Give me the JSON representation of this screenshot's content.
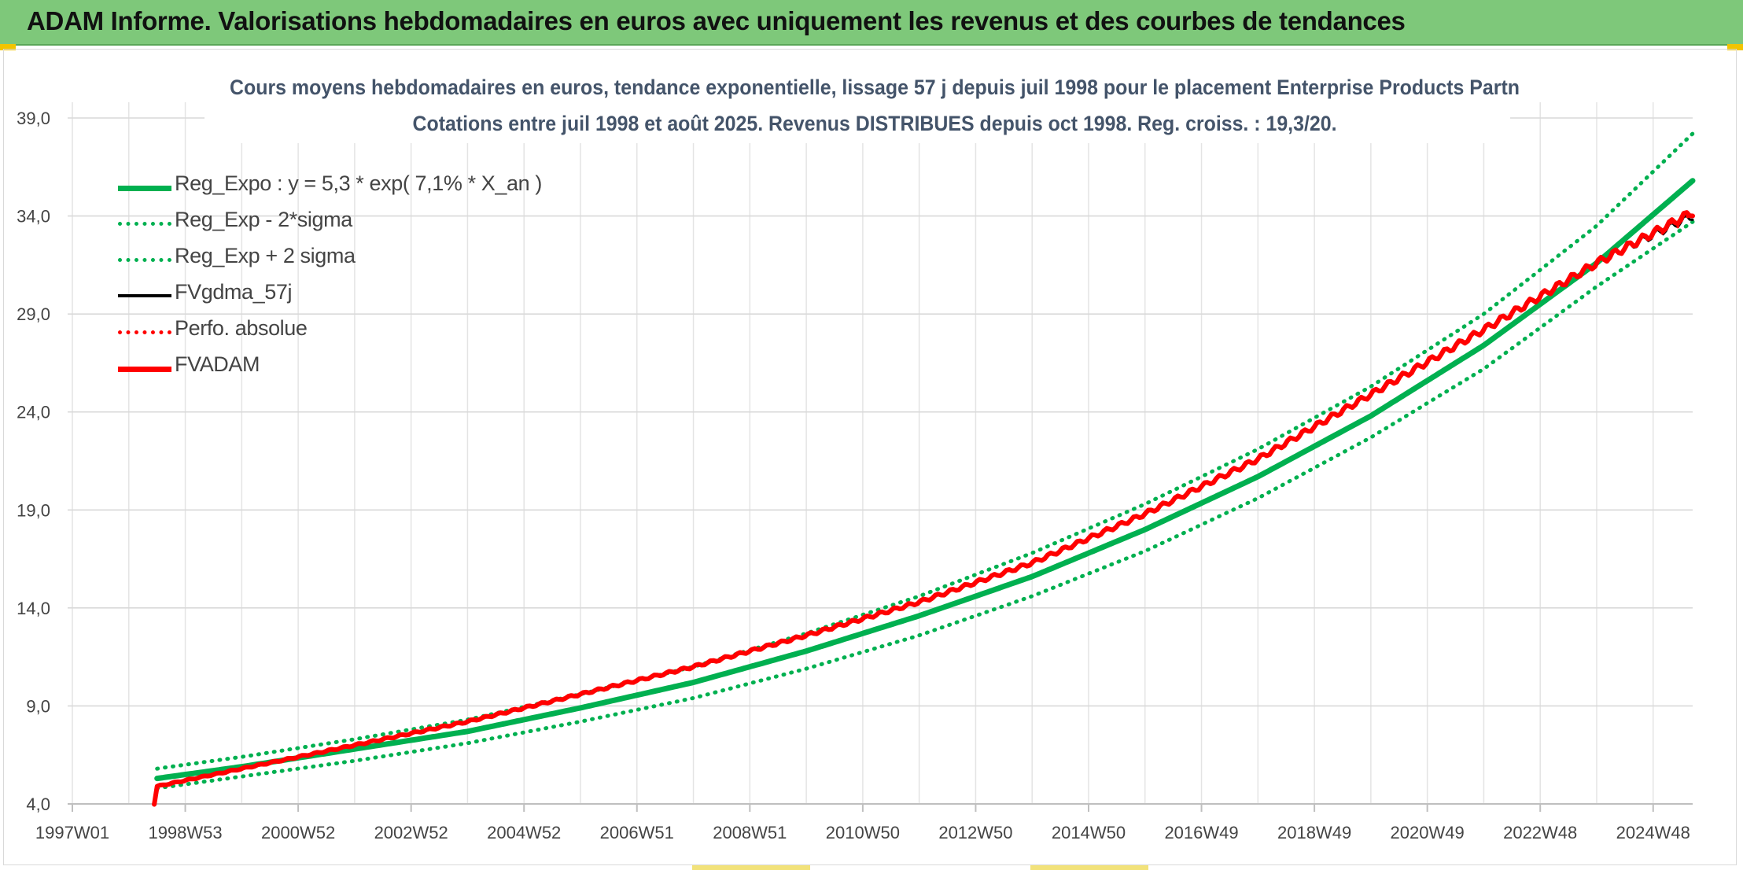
{
  "header": {
    "title": "ADAM Informe. Valorisations hebdomadaires en euros avec uniquement les revenus et des courbes de tendances"
  },
  "colors": {
    "banner": "#7ec87a",
    "reg_expo": "#00b050",
    "fvadam": "#ff0000",
    "fvgdma": "#000000",
    "grid": "#d9d9d9"
  },
  "chart_data": {
    "type": "line",
    "title": "Cours moyens hebdomadaires en euros, tendance exponentielle, lissage 57 j depuis juil 1998 pour le placement Enterprise Products Partn",
    "subtitle": "Cotations entre juil 1998 et août 2025. Revenus DISTRIBUES depuis oct 1998. Reg. croiss. : 19,3/20.",
    "xlabel": "",
    "ylabel": "",
    "ylim": [
      4.0,
      39.0
    ],
    "yticks": [
      "4,0",
      "9,0",
      "14,0",
      "19,0",
      "24,0",
      "29,0",
      "34,0",
      "39,0"
    ],
    "xticks": [
      "1997W01",
      "1998W53",
      "2000W52",
      "2002W52",
      "2004W52",
      "2006W51",
      "2008W51",
      "2010W50",
      "2012W50",
      "2014W50",
      "2016W49",
      "2018W49",
      "2020W49",
      "2022W48",
      "2024W48"
    ],
    "xlim": [
      1997.0,
      2025.7
    ],
    "grid": true,
    "legend_position": "top-left",
    "series": [
      {
        "name": "Reg_Expo : y = 5,3 * exp( 7,1% *  X_an )",
        "style": "solid-thick",
        "color": "#00b050",
        "x": [
          1998.5,
          2000,
          2002,
          2004,
          2006,
          2008,
          2010,
          2012,
          2014,
          2016,
          2018,
          2020,
          2022,
          2024,
          2025.7
        ],
        "values": [
          5.3,
          5.9,
          6.8,
          7.7,
          8.9,
          10.2,
          11.8,
          13.6,
          15.6,
          18.0,
          20.7,
          23.8,
          27.4,
          31.6,
          35.8
        ]
      },
      {
        "name": "Reg_Exp - 2*sigma",
        "style": "dotted",
        "color": "#00b050",
        "x": [
          1998.5,
          2000,
          2002,
          2004,
          2006,
          2008,
          2010,
          2012,
          2014,
          2016,
          2018,
          2020,
          2022,
          2024,
          2025.7
        ],
        "values": [
          4.8,
          5.4,
          6.2,
          7.1,
          8.2,
          9.4,
          10.9,
          12.6,
          14.6,
          16.9,
          19.6,
          22.7,
          26.2,
          30.4,
          33.7
        ]
      },
      {
        "name": "Reg_Exp + 2 sigma",
        "style": "dotted",
        "color": "#00b050",
        "x": [
          1998.5,
          2000,
          2002,
          2004,
          2006,
          2008,
          2010,
          2012,
          2014,
          2016,
          2018,
          2020,
          2022,
          2024,
          2025.7
        ],
        "values": [
          5.8,
          6.4,
          7.3,
          8.3,
          9.6,
          11.0,
          12.7,
          14.6,
          16.8,
          19.3,
          22.1,
          25.3,
          29.0,
          33.5,
          38.2
        ]
      },
      {
        "name": "FVgdma_57j",
        "style": "solid",
        "color": "#000000",
        "x": [
          1998.5,
          2000,
          2002,
          2004,
          2006,
          2008,
          2010,
          2012,
          2014,
          2016,
          2018,
          2020,
          2022,
          2024,
          2025.7
        ],
        "values": [
          4.9,
          5.8,
          7.0,
          8.2,
          9.6,
          11.0,
          12.6,
          14.3,
          16.3,
          18.8,
          21.6,
          24.9,
          28.2,
          31.6,
          34.0
        ]
      },
      {
        "name": "Perfo. absolue",
        "style": "dotted",
        "color": "#ff0000",
        "x": [
          1998.5,
          2000,
          2002,
          2004,
          2006,
          2008,
          2010,
          2012,
          2014,
          2016,
          2018,
          2020,
          2022,
          2024,
          2025.7
        ],
        "values": [
          4.9,
          5.8,
          7.0,
          8.2,
          9.6,
          11.0,
          12.6,
          14.3,
          16.3,
          18.8,
          21.6,
          24.9,
          28.2,
          31.6,
          34.0
        ]
      },
      {
        "name": "FVADAM",
        "style": "solid-thick",
        "color": "#ff0000",
        "x": [
          1998.45,
          1998.5,
          2000,
          2002,
          2004,
          2006,
          2008,
          2010,
          2012,
          2014,
          2016,
          2018,
          2020,
          2022,
          2024,
          2025.7
        ],
        "values": [
          4.0,
          4.9,
          5.8,
          7.0,
          8.2,
          9.6,
          11.0,
          12.6,
          14.3,
          16.3,
          18.8,
          21.6,
          24.9,
          28.2,
          31.6,
          34.2
        ]
      }
    ]
  }
}
